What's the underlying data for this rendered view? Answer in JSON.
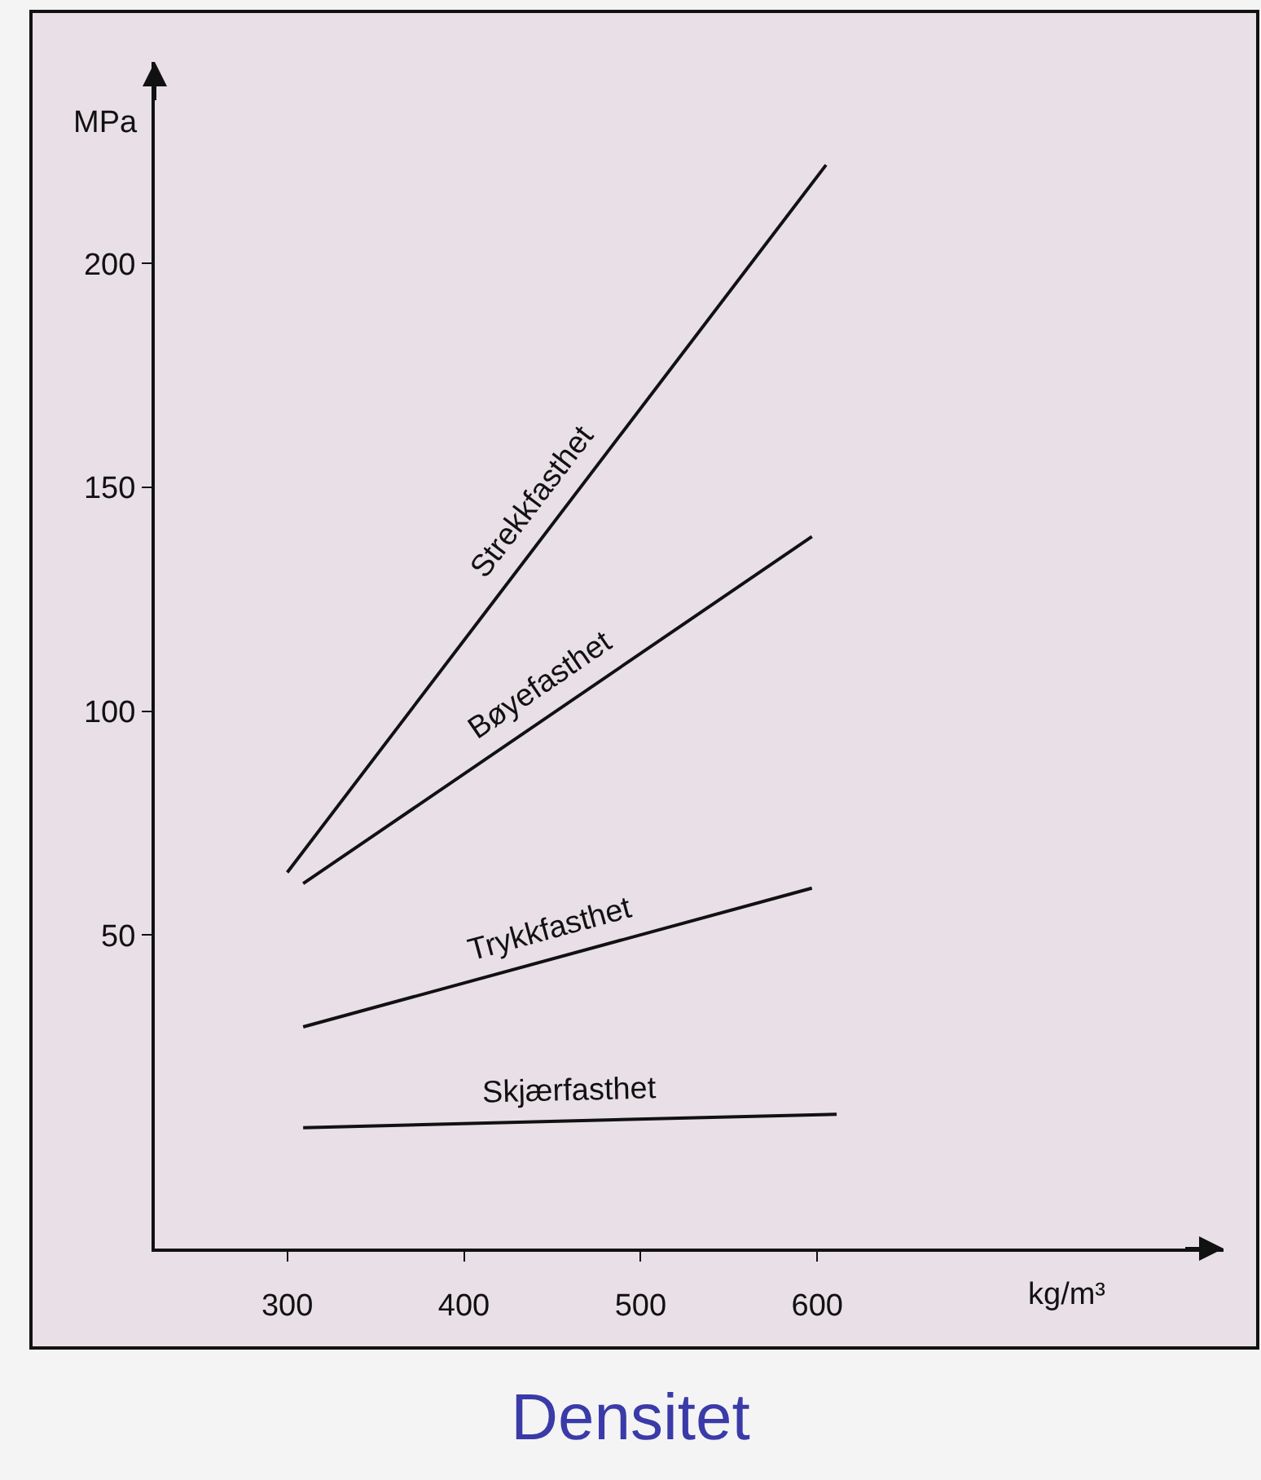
{
  "chart_data": {
    "type": "line",
    "title": "Densitet",
    "xlabel": "kg/m³",
    "ylabel": "MPa",
    "xlim": [
      225,
      830
    ],
    "ylim": [
      -20,
      245
    ],
    "xticks": [
      300,
      400,
      500,
      600
    ],
    "yticks": [
      50,
      100,
      150,
      200
    ],
    "grid": false,
    "legend": false,
    "marker": "none",
    "line_style": "solid",
    "series": [
      {
        "name": "Strekkfasthet",
        "color": "#111111",
        "x": [
          300,
          605
        ],
        "values": [
          64,
          222
        ]
      },
      {
        "name": "Bøyefasthet",
        "color": "#111111",
        "x": [
          309,
          597
        ],
        "values": [
          61.5,
          139
        ]
      },
      {
        "name": "Trykkfasthet",
        "color": "#111111",
        "x": [
          309,
          597
        ],
        "values": [
          29.5,
          60.5
        ]
      },
      {
        "name": "Skjærfasthet",
        "color": "#111111",
        "x": [
          309,
          611
        ],
        "values": [
          7,
          10
        ]
      }
    ]
  }
}
